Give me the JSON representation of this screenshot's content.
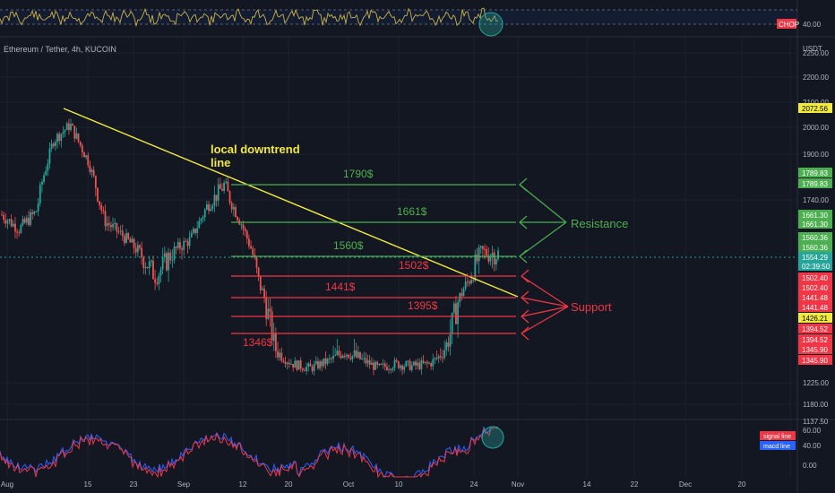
{
  "header": {
    "symbol": "Ethereum / Tether, 4h, KUCOIN",
    "currency": "USDT"
  },
  "indicators": {
    "chop_label": "CHOP",
    "chop_value": "40.00",
    "osc_levels": [
      "60.00",
      "40.00",
      "0.00"
    ],
    "legend_signal": "signal line",
    "legend_macd": "macd line"
  },
  "price_axis": {
    "ticks": [
      "2250.00",
      "2200.00",
      "2100.00",
      "2000.00",
      "1900.00",
      "1740.00",
      "1225.00",
      "1180.00",
      "1137.50"
    ]
  },
  "time_axis": {
    "ticks": [
      "Aug",
      "15",
      "23",
      "Sep",
      "12",
      "20",
      "Oct",
      "10",
      "24",
      "Nov",
      "14",
      "22",
      "Dec",
      "20"
    ]
  },
  "price_labels": [
    {
      "text": "2072.56",
      "kind": "yellow"
    },
    {
      "text": "1789.83",
      "kind": "green"
    },
    {
      "text": "1789.83",
      "kind": "green"
    },
    {
      "text": "1661.30",
      "kind": "green"
    },
    {
      "text": "1661.30",
      "kind": "green"
    },
    {
      "text": "1560.36",
      "kind": "green"
    },
    {
      "text": "1560.36",
      "kind": "green"
    },
    {
      "text": "1554.29",
      "kind": "teal"
    },
    {
      "text": "02:39:50",
      "kind": "teal"
    },
    {
      "text": "1502.40",
      "kind": "red"
    },
    {
      "text": "1502.40",
      "kind": "red"
    },
    {
      "text": "1441.48",
      "kind": "red"
    },
    {
      "text": "1441.48",
      "kind": "red"
    },
    {
      "text": "1426.21",
      "kind": "yellow"
    },
    {
      "text": "1394.52",
      "kind": "red"
    },
    {
      "text": "1394.52",
      "kind": "red"
    },
    {
      "text": "1345.90",
      "kind": "red"
    },
    {
      "text": "1345.90",
      "kind": "red"
    }
  ],
  "annotations": {
    "downtrend_line1": "local downtrend",
    "downtrend_line2": "line",
    "resistance": "Resistance",
    "support": "Support",
    "levels": [
      {
        "label": "1790$",
        "price": 1790,
        "kind": "resistance"
      },
      {
        "label": "1661$",
        "price": 1661,
        "kind": "resistance"
      },
      {
        "label": "1560$",
        "price": 1560,
        "kind": "resistance"
      },
      {
        "label": "1502$",
        "price": 1502,
        "kind": "support"
      },
      {
        "label": "1441$",
        "price": 1441,
        "kind": "support"
      },
      {
        "label": "1395$",
        "price": 1395,
        "kind": "support"
      },
      {
        "label": "1346$",
        "price": 1346,
        "kind": "support"
      }
    ]
  },
  "colors": {
    "background": "#131722",
    "up": "#26a69a",
    "down": "#ef5350",
    "trend": "#f2ea3b",
    "resistance": "#4caf50",
    "support": "#f23645",
    "chop": "#c9b34a",
    "macd": "#2962ff",
    "signal": "#f23645"
  },
  "chart_data": {
    "type": "line",
    "title": "Ethereum / Tether, 4h, KUCOIN",
    "ylabel": "USDT",
    "x_range": [
      "Aug",
      "Dec 20"
    ],
    "ylim": [
      1137.5,
      2250
    ],
    "series": [
      {
        "x": [
          "Aug 1",
          "Aug 5",
          "Aug 9",
          "Aug 13",
          "Aug 14",
          "Aug 17",
          "Aug 20",
          "Aug 23",
          "Aug 26",
          "Aug 29",
          "Sep 1",
          "Sep 4",
          "Sep 8",
          "Sep 11",
          "Sep 13",
          "Sep 16",
          "Sep 19",
          "Sep 22",
          "Sep 26",
          "Sep 30",
          "Oct 4",
          "Oct 8",
          "Oct 12",
          "Oct 15",
          "Oct 18",
          "Oct 21",
          "Oct 24",
          "Oct 25",
          "Oct 26",
          "Oct 27"
        ],
        "values": [
          1690,
          1640,
          1700,
          1950,
          2010,
          1880,
          1670,
          1620,
          1560,
          1510,
          1560,
          1600,
          1720,
          1780,
          1660,
          1500,
          1360,
          1310,
          1290,
          1320,
          1360,
          1330,
          1290,
          1310,
          1300,
          1310,
          1370,
          1480,
          1560,
          1555
        ]
      }
    ],
    "downtrend_line": {
      "from": [
        "Jul 28",
        2050
      ],
      "to": [
        "Oct 28",
        1470
      ]
    },
    "horizontal_levels": [
      1790,
      1661,
      1560,
      1502,
      1441,
      1395,
      1346
    ],
    "grid": true,
    "legend": "none"
  }
}
